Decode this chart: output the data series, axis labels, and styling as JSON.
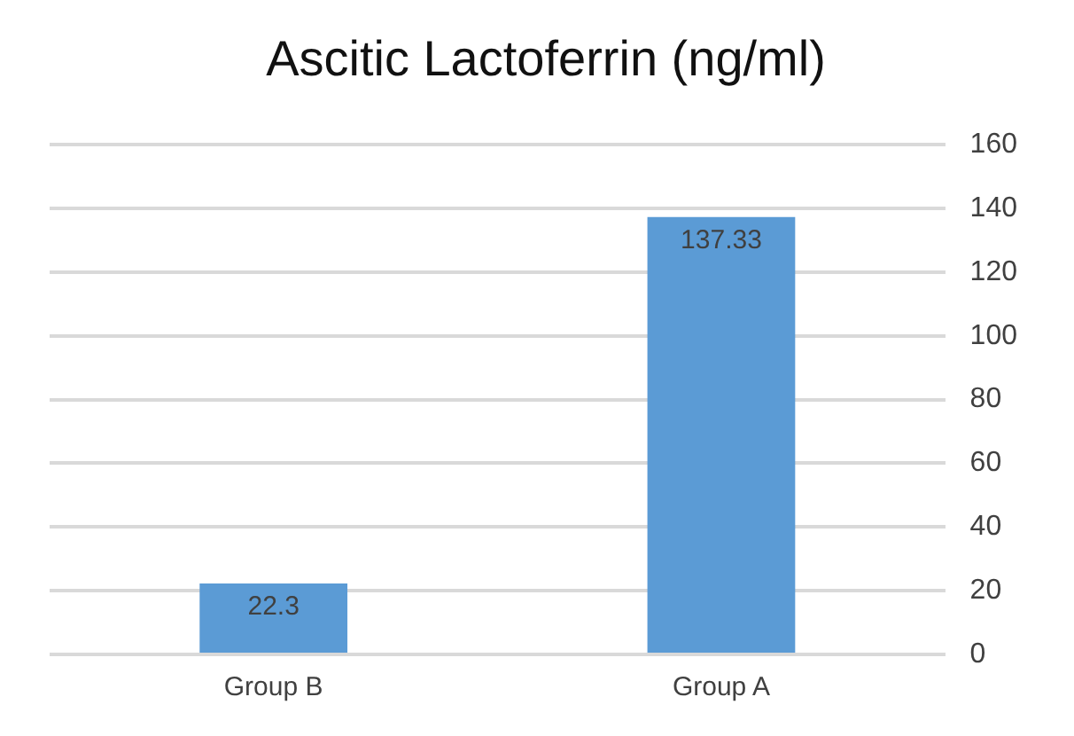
{
  "chart_data": {
    "type": "bar",
    "title": "Ascitic Lactoferrin (ng/ml)",
    "categories": [
      "Group B",
      "Group A"
    ],
    "values": [
      22.3,
      137.33
    ],
    "color": "#5b9bd5",
    "ylim": [
      0,
      160
    ],
    "yticks": [
      0,
      20,
      40,
      60,
      80,
      100,
      120,
      140,
      160
    ],
    "grid": "y",
    "data_labels": true,
    "legend": false
  }
}
